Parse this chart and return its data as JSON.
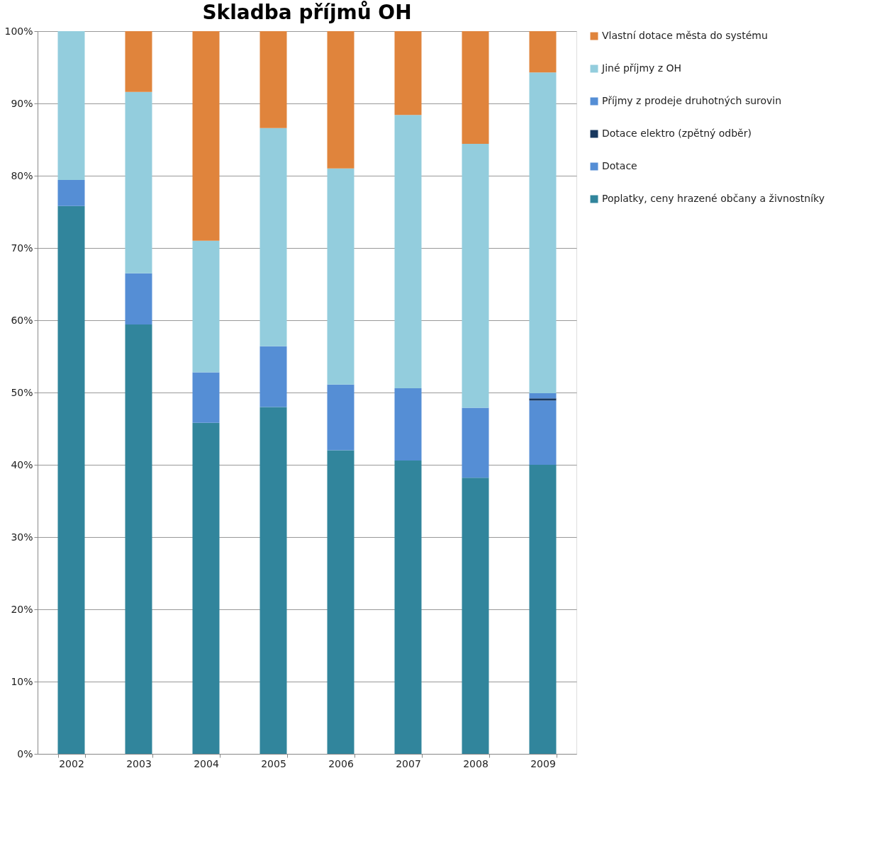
{
  "chart_data": {
    "type": "bar",
    "title": "Skladba příjmů  OH",
    "stacked": true,
    "categories": [
      "2002",
      "2003",
      "2004",
      "2005",
      "2006",
      "2007",
      "2008",
      "2009"
    ],
    "series": [
      {
        "name": "Poplatky, ceny hrazené občany a živnostníky",
        "color": "#31859c",
        "values": [
          75.8,
          59.4,
          45.8,
          48.0,
          42.0,
          40.6,
          38.2,
          40.0
        ]
      },
      {
        "name": "Dotace",
        "color": "#558ed5",
        "values": [
          3.6,
          7.1,
          7.0,
          8.4,
          9.1,
          10.0,
          9.7,
          8.9
        ]
      },
      {
        "name": "Dotace elektro (zpětný odběr)",
        "color": "#17375e",
        "values": [
          0,
          0,
          0,
          0,
          0,
          0,
          0,
          0.3
        ]
      },
      {
        "name": "Příjmy z prodeje druhotných surovin",
        "color": "#558ed5",
        "values": [
          0,
          0,
          0,
          0,
          0,
          0,
          0,
          0.7
        ]
      },
      {
        "name": "Jiné příjmy z OH",
        "color": "#93cddd",
        "values": [
          20.6,
          25.1,
          18.2,
          30.2,
          29.9,
          37.8,
          36.5,
          44.4
        ]
      },
      {
        "name": "Vlastní dotace města do systému",
        "color": "#e0843c",
        "values": [
          0,
          8.4,
          29.0,
          13.4,
          19.0,
          11.6,
          15.6,
          5.7
        ]
      }
    ],
    "ylim": [
      0,
      100
    ],
    "yticks": [
      {
        "value": 0,
        "label": "0%"
      },
      {
        "value": 10,
        "label": "10%"
      },
      {
        "value": 20,
        "label": "20%"
      },
      {
        "value": 30,
        "label": "30%"
      },
      {
        "value": 40,
        "label": "40%"
      },
      {
        "value": 50,
        "label": "50%"
      },
      {
        "value": 60,
        "label": "60%"
      },
      {
        "value": 70,
        "label": "70%"
      },
      {
        "value": 80,
        "label": "80%"
      },
      {
        "value": 90,
        "label": "90%"
      },
      {
        "value": 100,
        "label": "100%"
      }
    ],
    "grid": "y",
    "legend": "right"
  }
}
